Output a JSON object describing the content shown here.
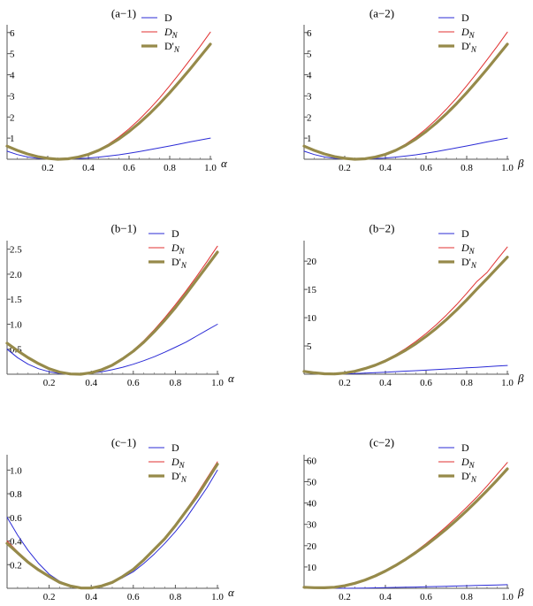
{
  "figure": {
    "legend_labels": {
      "D": "D",
      "DN_main": "D",
      "DN_sub": "N",
      "DpN_main": "D'",
      "DpN_sub": "N"
    },
    "colors": {
      "D": "#2b2bd6",
      "DN": "#e03030",
      "DpN": "#968a4a"
    }
  },
  "chart_data": [
    {
      "type": "line",
      "title": "(a−1)",
      "xlabel": "α",
      "xlim": [
        0,
        1
      ],
      "ylim": [
        0,
        6.2
      ],
      "xticks": [
        0.2,
        0.4,
        0.6,
        0.8,
        1.0
      ],
      "xtick_labels": [
        "0.2",
        "0.4",
        "0.6",
        "0.8",
        "1.0"
      ],
      "yticks": [
        1,
        2,
        3,
        4,
        5,
        6
      ],
      "ytick_labels": [
        "1",
        "2",
        "3",
        "4",
        "5",
        "6"
      ],
      "series": [
        {
          "name": "D",
          "x": [
            0,
            0.05,
            0.1,
            0.15,
            0.2,
            0.25,
            0.3,
            0.35,
            0.4,
            0.45,
            0.5,
            0.55,
            0.6,
            0.65,
            0.7,
            0.75,
            0.8,
            0.85,
            0.9,
            0.95,
            1.0
          ],
          "y": [
            0.38,
            0.22,
            0.11,
            0.04,
            0.01,
            0.0,
            0.01,
            0.03,
            0.06,
            0.1,
            0.15,
            0.21,
            0.28,
            0.36,
            0.45,
            0.54,
            0.63,
            0.72,
            0.82,
            0.91,
            1.0
          ]
        },
        {
          "name": "DN",
          "x": [
            0,
            0.05,
            0.1,
            0.15,
            0.2,
            0.25,
            0.3,
            0.35,
            0.4,
            0.45,
            0.5,
            0.55,
            0.6,
            0.65,
            0.7,
            0.75,
            0.8,
            0.85,
            0.9,
            0.95,
            1.0
          ],
          "y": [
            0.62,
            0.42,
            0.25,
            0.12,
            0.04,
            0.0,
            0.02,
            0.1,
            0.24,
            0.45,
            0.72,
            1.05,
            1.44,
            1.88,
            2.37,
            2.9,
            3.48,
            4.08,
            4.71,
            5.35,
            6.02
          ]
        },
        {
          "name": "D'N",
          "x": [
            0,
            0.05,
            0.1,
            0.15,
            0.2,
            0.25,
            0.3,
            0.35,
            0.4,
            0.45,
            0.5,
            0.55,
            0.6,
            0.65,
            0.7,
            0.75,
            0.8,
            0.85,
            0.9,
            0.95,
            1.0
          ],
          "y": [
            0.62,
            0.42,
            0.25,
            0.12,
            0.04,
            0.0,
            0.02,
            0.1,
            0.23,
            0.42,
            0.66,
            0.96,
            1.31,
            1.71,
            2.15,
            2.63,
            3.15,
            3.7,
            4.27,
            4.86,
            5.45
          ]
        }
      ]
    },
    {
      "type": "line",
      "title": "(a−2)",
      "xlabel": "β",
      "xlim": [
        0,
        1
      ],
      "ylim": [
        0,
        6.2
      ],
      "xticks": [
        0.2,
        0.4,
        0.6,
        0.8,
        1.0
      ],
      "xtick_labels": [
        "0.2",
        "0.4",
        "0.6",
        "0.8",
        "1.0"
      ],
      "yticks": [
        1,
        2,
        3,
        4,
        5,
        6
      ],
      "ytick_labels": [
        "1",
        "2",
        "3",
        "4",
        "5",
        "6"
      ],
      "series": [
        {
          "name": "D",
          "x": [
            0,
            0.05,
            0.1,
            0.15,
            0.2,
            0.25,
            0.3,
            0.35,
            0.4,
            0.45,
            0.5,
            0.55,
            0.6,
            0.65,
            0.7,
            0.75,
            0.8,
            0.85,
            0.9,
            0.95,
            1.0
          ],
          "y": [
            0.38,
            0.22,
            0.11,
            0.04,
            0.01,
            0.0,
            0.01,
            0.03,
            0.06,
            0.1,
            0.15,
            0.21,
            0.28,
            0.36,
            0.45,
            0.54,
            0.63,
            0.72,
            0.82,
            0.91,
            1.0
          ]
        },
        {
          "name": "DN",
          "x": [
            0,
            0.05,
            0.1,
            0.15,
            0.2,
            0.25,
            0.3,
            0.35,
            0.4,
            0.45,
            0.5,
            0.55,
            0.6,
            0.65,
            0.7,
            0.75,
            0.8,
            0.85,
            0.9,
            0.95,
            1.0
          ],
          "y": [
            0.62,
            0.42,
            0.25,
            0.12,
            0.04,
            0.0,
            0.02,
            0.1,
            0.24,
            0.45,
            0.72,
            1.05,
            1.44,
            1.88,
            2.37,
            2.9,
            3.48,
            4.08,
            4.71,
            5.35,
            6.02
          ]
        },
        {
          "name": "D'N",
          "x": [
            0,
            0.05,
            0.1,
            0.15,
            0.2,
            0.25,
            0.3,
            0.35,
            0.4,
            0.45,
            0.5,
            0.55,
            0.6,
            0.65,
            0.7,
            0.75,
            0.8,
            0.85,
            0.9,
            0.95,
            1.0
          ],
          "y": [
            0.62,
            0.42,
            0.25,
            0.12,
            0.04,
            0.0,
            0.02,
            0.1,
            0.23,
            0.42,
            0.66,
            0.96,
            1.31,
            1.71,
            2.15,
            2.63,
            3.15,
            3.7,
            4.27,
            4.86,
            5.45
          ]
        }
      ]
    },
    {
      "type": "line",
      "title": "(b−1)",
      "xlabel": "α",
      "xlim": [
        0,
        1
      ],
      "ylim": [
        0,
        2.6
      ],
      "xticks": [
        0.2,
        0.4,
        0.6,
        0.8,
        1.0
      ],
      "xtick_labels": [
        "0.2",
        "0.4",
        "0.6",
        "0.8",
        "1.0"
      ],
      "yticks": [
        0.5,
        1.0,
        1.5,
        2.0,
        2.5
      ],
      "ytick_labels": [
        "0.5",
        "1.0",
        "1.5",
        "2.0",
        "2.5"
      ],
      "series": [
        {
          "name": "D",
          "x": [
            0,
            0.05,
            0.1,
            0.15,
            0.2,
            0.25,
            0.3,
            0.35,
            0.4,
            0.45,
            0.5,
            0.55,
            0.6,
            0.65,
            0.7,
            0.75,
            0.8,
            0.85,
            0.9,
            0.95,
            1.0
          ],
          "y": [
            0.5,
            0.33,
            0.2,
            0.11,
            0.05,
            0.015,
            0.0,
            0.003,
            0.02,
            0.05,
            0.09,
            0.14,
            0.2,
            0.27,
            0.35,
            0.44,
            0.54,
            0.64,
            0.76,
            0.88,
            1.0
          ]
        },
        {
          "name": "DN",
          "x": [
            0,
            0.05,
            0.1,
            0.15,
            0.2,
            0.25,
            0.3,
            0.35,
            0.4,
            0.45,
            0.5,
            0.55,
            0.6,
            0.65,
            0.7,
            0.75,
            0.8,
            0.85,
            0.9,
            0.95,
            1.0
          ],
          "y": [
            0.62,
            0.47,
            0.33,
            0.21,
            0.11,
            0.04,
            0.005,
            0.0,
            0.03,
            0.09,
            0.19,
            0.32,
            0.48,
            0.67,
            0.89,
            1.13,
            1.39,
            1.66,
            1.95,
            2.25,
            2.56
          ]
        },
        {
          "name": "D'N",
          "x": [
            0,
            0.05,
            0.1,
            0.15,
            0.2,
            0.25,
            0.3,
            0.35,
            0.4,
            0.45,
            0.5,
            0.55,
            0.6,
            0.65,
            0.7,
            0.75,
            0.8,
            0.85,
            0.9,
            0.95,
            1.0
          ],
          "y": [
            0.62,
            0.47,
            0.33,
            0.21,
            0.11,
            0.04,
            0.005,
            0.0,
            0.03,
            0.09,
            0.18,
            0.31,
            0.46,
            0.64,
            0.85,
            1.08,
            1.33,
            1.6,
            1.88,
            2.16,
            2.44
          ]
        }
      ]
    },
    {
      "type": "line",
      "title": "(b−2)",
      "xlabel": "β",
      "xlim": [
        0,
        1
      ],
      "ylim": [
        0,
        23
      ],
      "xticks": [
        0.2,
        0.4,
        0.6,
        0.8,
        1.0
      ],
      "xtick_labels": [
        "0.2",
        "0.4",
        "0.6",
        "0.8",
        "1.0"
      ],
      "yticks": [
        5,
        10,
        15,
        20
      ],
      "ytick_labels": [
        "5",
        "10",
        "15",
        "20"
      ],
      "series": [
        {
          "name": "D",
          "x": [
            0,
            0.05,
            0.1,
            0.15,
            0.2,
            0.25,
            0.3,
            0.35,
            0.4,
            0.45,
            0.5,
            0.55,
            0.6,
            0.65,
            0.7,
            0.75,
            0.8,
            0.85,
            0.9,
            0.95,
            1.0
          ],
          "y": [
            0.4,
            0.2,
            0.05,
            0.0,
            0.05,
            0.12,
            0.2,
            0.28,
            0.36,
            0.45,
            0.54,
            0.63,
            0.72,
            0.82,
            0.92,
            1.02,
            1.12,
            1.22,
            1.33,
            1.44,
            1.55
          ]
        },
        {
          "name": "DN",
          "x": [
            0,
            0.05,
            0.1,
            0.15,
            0.2,
            0.25,
            0.3,
            0.35,
            0.4,
            0.45,
            0.5,
            0.55,
            0.6,
            0.65,
            0.7,
            0.75,
            0.8,
            0.85,
            0.9,
            0.95,
            1.0
          ],
          "y": [
            0.5,
            0.25,
            0.08,
            0.05,
            0.22,
            0.55,
            1.05,
            1.7,
            2.5,
            3.45,
            4.55,
            5.8,
            7.2,
            8.75,
            10.45,
            12.3,
            14.3,
            16.4,
            18.0,
            20.3,
            22.5
          ]
        },
        {
          "name": "D'N",
          "x": [
            0,
            0.05,
            0.1,
            0.15,
            0.2,
            0.25,
            0.3,
            0.35,
            0.4,
            0.45,
            0.5,
            0.55,
            0.6,
            0.65,
            0.7,
            0.75,
            0.8,
            0.85,
            0.9,
            0.95,
            1.0
          ],
          "y": [
            0.5,
            0.25,
            0.08,
            0.05,
            0.21,
            0.52,
            1.0,
            1.6,
            2.35,
            3.25,
            4.25,
            5.4,
            6.7,
            8.1,
            9.65,
            11.35,
            13.15,
            15.05,
            16.9,
            18.8,
            20.7
          ]
        }
      ]
    },
    {
      "type": "line",
      "title": "(c−1)",
      "xlabel": "α",
      "xlim": [
        0,
        1
      ],
      "ylim": [
        0,
        1.1
      ],
      "xticks": [
        0.2,
        0.4,
        0.6,
        0.8,
        1.0
      ],
      "xtick_labels": [
        "0.2",
        "0.4",
        "0.6",
        "0.8",
        "1.0"
      ],
      "yticks": [
        0.2,
        0.4,
        0.6,
        0.8,
        1.0
      ],
      "ytick_labels": [
        "0.2",
        "0.4",
        "0.6",
        "0.8",
        "1.0"
      ],
      "series": [
        {
          "name": "D",
          "x": [
            0,
            0.05,
            0.1,
            0.15,
            0.2,
            0.25,
            0.3,
            0.35,
            0.4,
            0.45,
            0.5,
            0.55,
            0.6,
            0.65,
            0.7,
            0.75,
            0.8,
            0.85,
            0.9,
            0.95,
            1.0
          ],
          "y": [
            0.6,
            0.45,
            0.32,
            0.21,
            0.12,
            0.06,
            0.02,
            0.002,
            0.003,
            0.02,
            0.05,
            0.09,
            0.14,
            0.21,
            0.29,
            0.38,
            0.48,
            0.59,
            0.72,
            0.85,
            1.0
          ]
        },
        {
          "name": "DN",
          "x": [
            0,
            0.05,
            0.1,
            0.15,
            0.2,
            0.25,
            0.3,
            0.35,
            0.4,
            0.45,
            0.5,
            0.55,
            0.6,
            0.65,
            0.7,
            0.75,
            0.8,
            0.85,
            0.9,
            0.95,
            1.0
          ],
          "y": [
            0.4,
            0.31,
            0.23,
            0.16,
            0.1,
            0.05,
            0.02,
            0.003,
            0.002,
            0.02,
            0.05,
            0.1,
            0.16,
            0.24,
            0.33,
            0.43,
            0.54,
            0.66,
            0.79,
            0.93,
            1.07
          ]
        },
        {
          "name": "D'N",
          "x": [
            0,
            0.05,
            0.1,
            0.15,
            0.2,
            0.25,
            0.3,
            0.35,
            0.4,
            0.45,
            0.5,
            0.55,
            0.6,
            0.65,
            0.7,
            0.75,
            0.8,
            0.85,
            0.9,
            0.95,
            1.0
          ],
          "y": [
            0.38,
            0.3,
            0.22,
            0.155,
            0.1,
            0.05,
            0.02,
            0.003,
            0.002,
            0.02,
            0.05,
            0.1,
            0.16,
            0.24,
            0.33,
            0.42,
            0.53,
            0.65,
            0.77,
            0.91,
            1.05
          ]
        }
      ]
    },
    {
      "type": "line",
      "title": "(c−2)",
      "xlabel": "β",
      "xlim": [
        0,
        1
      ],
      "ylim": [
        0,
        61
      ],
      "xticks": [
        0.2,
        0.4,
        0.6,
        0.8,
        1.0
      ],
      "xtick_labels": [
        "0.2",
        "0.4",
        "0.6",
        "0.8",
        "1.0"
      ],
      "yticks": [
        10,
        20,
        30,
        40,
        50,
        60
      ],
      "ytick_labels": [
        "10",
        "20",
        "30",
        "40",
        "50",
        "60"
      ],
      "series": [
        {
          "name": "D",
          "x": [
            0,
            0.05,
            0.1,
            0.15,
            0.2,
            0.25,
            0.3,
            0.35,
            0.4,
            0.45,
            0.5,
            0.55,
            0.6,
            0.65,
            0.7,
            0.75,
            0.8,
            0.85,
            0.9,
            0.95,
            1.0
          ],
          "y": [
            0.4,
            0.25,
            0.12,
            0.05,
            0.02,
            0.05,
            0.12,
            0.2,
            0.3,
            0.4,
            0.5,
            0.6,
            0.72,
            0.84,
            0.96,
            1.08,
            1.2,
            1.32,
            1.45,
            1.58,
            1.7
          ]
        },
        {
          "name": "DN",
          "x": [
            0,
            0.05,
            0.1,
            0.15,
            0.2,
            0.25,
            0.3,
            0.35,
            0.4,
            0.45,
            0.5,
            0.55,
            0.6,
            0.65,
            0.7,
            0.75,
            0.8,
            0.85,
            0.9,
            0.95,
            1.0
          ],
          "y": [
            0.5,
            0.3,
            0.25,
            0.5,
            1.2,
            2.4,
            4.0,
            6.0,
            8.4,
            11.1,
            14.1,
            17.4,
            21.0,
            24.9,
            29.0,
            33.4,
            38.0,
            42.8,
            48.0,
            53.5,
            59.0
          ]
        },
        {
          "name": "D'N",
          "x": [
            0,
            0.05,
            0.1,
            0.15,
            0.2,
            0.25,
            0.3,
            0.35,
            0.4,
            0.45,
            0.5,
            0.55,
            0.6,
            0.65,
            0.7,
            0.75,
            0.8,
            0.85,
            0.9,
            0.95,
            1.0
          ],
          "y": [
            0.5,
            0.3,
            0.25,
            0.5,
            1.2,
            2.35,
            3.9,
            5.8,
            8.1,
            10.7,
            13.6,
            16.8,
            20.2,
            23.9,
            27.8,
            32.0,
            36.4,
            41.0,
            45.8,
            50.8,
            56.0
          ]
        }
      ]
    }
  ]
}
